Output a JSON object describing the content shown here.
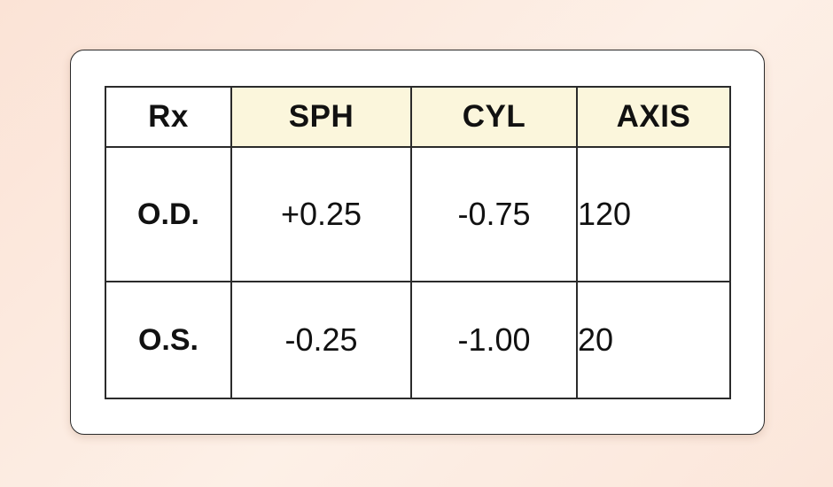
{
  "table": {
    "headers": [
      "Rx",
      "SPH",
      "CYL",
      "AXIS"
    ],
    "rows": [
      {
        "label": "O.D.",
        "sph": "+0.25",
        "cyl": "-0.75",
        "axis": "120"
      },
      {
        "label": "O.S.",
        "sph": "-0.25",
        "cyl": "-1.00",
        "axis": "20"
      }
    ]
  },
  "colors": {
    "background": "#fbe6da",
    "card": "#ffffff",
    "header_highlight": "#fbf6dc",
    "border": "#2b2b2b"
  }
}
